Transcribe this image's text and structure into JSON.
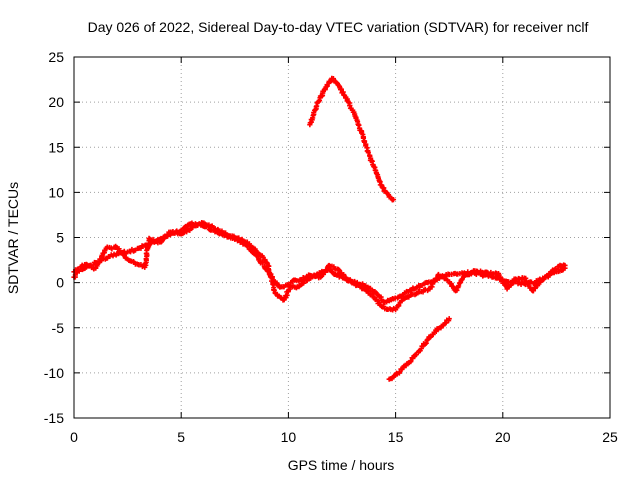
{
  "chart_data": {
    "type": "scatter",
    "title": "Day 026 of 2022, Sidereal Day-to-day VTEC variation (SDTVAR) for receiver nclf",
    "xlabel": "GPS time / hours",
    "ylabel": "SDTVAR / TECUs",
    "xlim": [
      0,
      25
    ],
    "ylim": [
      -15,
      25
    ],
    "xticks": [
      0,
      5,
      10,
      15,
      20,
      25
    ],
    "yticks": [
      -15,
      -10,
      -5,
      0,
      5,
      10,
      15,
      20,
      25
    ],
    "grid": true,
    "marker": "plus",
    "color": "#ff0000",
    "series": [
      {
        "name": "main-track",
        "points": [
          [
            0.0,
            0.6
          ],
          [
            0.3,
            1.5
          ],
          [
            0.7,
            1.9
          ],
          [
            1.0,
            2.2
          ],
          [
            1.5,
            2.7
          ],
          [
            2.0,
            3.2
          ],
          [
            2.5,
            3.4
          ],
          [
            3.0,
            3.8
          ],
          [
            3.5,
            4.2
          ],
          [
            4.0,
            4.8
          ],
          [
            4.5,
            5.3
          ],
          [
            5.0,
            5.8
          ],
          [
            5.5,
            6.6
          ],
          [
            6.0,
            6.3
          ],
          [
            6.5,
            5.8
          ],
          [
            7.0,
            5.2
          ],
          [
            7.5,
            4.8
          ],
          [
            8.0,
            4.2
          ],
          [
            8.5,
            3.0
          ],
          [
            9.0,
            1.5
          ],
          [
            9.3,
            0.3
          ],
          [
            9.6,
            -0.5
          ],
          [
            10.0,
            -0.3
          ],
          [
            10.3,
            -0.5
          ],
          [
            10.6,
            -0.2
          ],
          [
            11.0,
            0.5
          ],
          [
            11.5,
            1.1
          ],
          [
            11.9,
            1.4
          ],
          [
            12.2,
            0.9
          ],
          [
            12.6,
            0.5
          ],
          [
            13.0,
            0.1
          ],
          [
            13.5,
            -0.3
          ],
          [
            14.0,
            -1.0
          ],
          [
            14.5,
            -2.2
          ],
          [
            14.8,
            -1.9
          ],
          [
            15.2,
            -1.5
          ],
          [
            15.6,
            -1.0
          ],
          [
            16.0,
            -0.5
          ],
          [
            16.5,
            0.0
          ],
          [
            17.0,
            0.5
          ],
          [
            17.5,
            0.9
          ],
          [
            18.0,
            1.0
          ],
          [
            18.5,
            1.1
          ],
          [
            19.0,
            0.9
          ],
          [
            19.5,
            0.6
          ],
          [
            20.0,
            0.3
          ],
          [
            20.5,
            0.0
          ],
          [
            21.0,
            -0.1
          ],
          [
            21.5,
            0.0
          ],
          [
            22.0,
            0.6
          ],
          [
            22.5,
            1.2
          ],
          [
            22.9,
            1.6
          ]
        ]
      },
      {
        "name": "main-track-band",
        "points": [
          [
            0.0,
            1.2
          ],
          [
            0.5,
            2.0
          ],
          [
            1.0,
            1.6
          ],
          [
            1.5,
            3.8
          ],
          [
            2.0,
            3.9
          ],
          [
            2.5,
            2.6
          ],
          [
            3.0,
            2.0
          ],
          [
            3.3,
            1.7
          ],
          [
            3.5,
            4.9
          ],
          [
            4.0,
            4.5
          ],
          [
            4.5,
            5.6
          ],
          [
            5.0,
            5.4
          ],
          [
            5.5,
            6.1
          ],
          [
            6.0,
            6.6
          ],
          [
            6.5,
            6.1
          ],
          [
            7.0,
            5.5
          ],
          [
            7.5,
            5.0
          ],
          [
            8.0,
            4.5
          ],
          [
            8.5,
            3.5
          ],
          [
            9.0,
            2.2
          ],
          [
            9.4,
            -1.2
          ],
          [
            9.8,
            -1.9
          ],
          [
            10.2,
            0.2
          ],
          [
            10.6,
            0.3
          ],
          [
            11.0,
            0.8
          ],
          [
            11.5,
            0.6
          ],
          [
            11.9,
            1.9
          ],
          [
            12.3,
            1.5
          ],
          [
            12.8,
            0.3
          ],
          [
            13.2,
            -0.3
          ],
          [
            13.6,
            -0.8
          ],
          [
            14.0,
            -1.7
          ],
          [
            14.5,
            -2.9
          ],
          [
            15.0,
            -3.0
          ],
          [
            15.3,
            -2.0
          ],
          [
            15.7,
            -1.4
          ],
          [
            16.2,
            -1.0
          ],
          [
            16.6,
            -0.7
          ],
          [
            17.0,
            0.9
          ],
          [
            17.4,
            0.3
          ],
          [
            17.8,
            -0.9
          ],
          [
            18.2,
            0.7
          ],
          [
            18.7,
            1.3
          ],
          [
            19.3,
            1.1
          ],
          [
            19.8,
            1.0
          ],
          [
            20.2,
            -0.7
          ],
          [
            20.6,
            0.4
          ],
          [
            21.0,
            0.5
          ],
          [
            21.4,
            -0.9
          ],
          [
            21.8,
            0.3
          ],
          [
            22.2,
            1.0
          ],
          [
            22.6,
            1.8
          ],
          [
            22.9,
            1.9
          ]
        ]
      },
      {
        "name": "upper-arc",
        "points": [
          [
            11.0,
            17.5
          ],
          [
            11.3,
            19.5
          ],
          [
            11.6,
            21.0
          ],
          [
            11.9,
            22.3
          ],
          [
            12.1,
            22.6
          ],
          [
            12.4,
            21.6
          ],
          [
            12.8,
            20.0
          ],
          [
            13.2,
            18.0
          ],
          [
            13.5,
            16.0
          ],
          [
            13.8,
            14.0
          ],
          [
            14.1,
            12.2
          ],
          [
            14.4,
            10.5
          ],
          [
            14.7,
            9.5
          ],
          [
            14.9,
            9.2
          ]
        ]
      },
      {
        "name": "lower-track",
        "points": [
          [
            14.7,
            -10.7
          ],
          [
            15.0,
            -10.2
          ],
          [
            15.3,
            -9.6
          ],
          [
            15.6,
            -8.9
          ],
          [
            15.9,
            -8.1
          ],
          [
            16.2,
            -7.3
          ],
          [
            16.5,
            -6.3
          ],
          [
            16.8,
            -5.5
          ],
          [
            17.0,
            -5.1
          ],
          [
            17.3,
            -4.5
          ],
          [
            17.5,
            -4.0
          ]
        ]
      }
    ]
  }
}
